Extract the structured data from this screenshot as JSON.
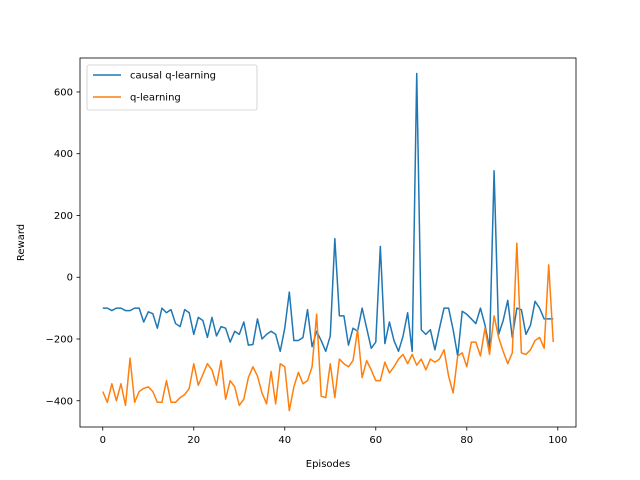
{
  "chart_data": {
    "type": "line",
    "xlabel": "Episodes",
    "ylabel": "Reward",
    "xlim": [
      -5,
      104
    ],
    "ylim": [
      -485,
      710
    ],
    "xticks": [
      0,
      20,
      40,
      60,
      80,
      100
    ],
    "yticks": [
      -400,
      -200,
      0,
      200,
      400,
      600
    ],
    "legend_position": "top-left",
    "grid": false,
    "series": [
      {
        "name": "causal q-learning",
        "color": "#1f77b4",
        "values": [
          -100,
          -100,
          -108,
          -100,
          -100,
          -108,
          -108,
          -100,
          -100,
          -145,
          -112,
          -118,
          -165,
          -100,
          -115,
          -105,
          -150,
          -160,
          -105,
          -115,
          -185,
          -130,
          -140,
          -195,
          -130,
          -190,
          -160,
          -165,
          -210,
          -175,
          -185,
          -145,
          -220,
          -218,
          -135,
          -200,
          -185,
          -175,
          -185,
          -240,
          -165,
          -48,
          -205,
          -205,
          -195,
          -105,
          -225,
          -175,
          -205,
          -240,
          -190,
          125,
          -125,
          -125,
          -220,
          -165,
          -175,
          -100,
          -165,
          -230,
          -210,
          100,
          -215,
          -145,
          -205,
          -240,
          -190,
          -115,
          -240,
          660,
          -170,
          -185,
          -170,
          -235,
          -165,
          -100,
          -100,
          -170,
          -255,
          -110,
          -120,
          -135,
          -150,
          -100,
          -155,
          -230,
          345,
          -185,
          -140,
          -75,
          -195,
          -100,
          -105,
          -185,
          -155,
          -78,
          -100,
          -135,
          -135,
          -135
        ],
        "values_note": ""
      },
      {
        "name": "q-learning",
        "color": "#ff7f0e",
        "values": [
          -370,
          -405,
          -345,
          -400,
          -345,
          -415,
          -262,
          -405,
          -370,
          -360,
          -355,
          -370,
          -405,
          -405,
          -335,
          -405,
          -405,
          -390,
          -380,
          -360,
          -280,
          -350,
          -315,
          -280,
          -300,
          -350,
          -270,
          -395,
          -335,
          -355,
          -415,
          -395,
          -325,
          -290,
          -320,
          -375,
          -410,
          -305,
          -410,
          -280,
          -290,
          -432,
          -355,
          -308,
          -345,
          -335,
          -290,
          -120,
          -385,
          -390,
          -280,
          -390,
          -265,
          -280,
          -290,
          -270,
          -170,
          -325,
          -270,
          -300,
          -335,
          -335,
          -275,
          -310,
          -290,
          -265,
          -250,
          -280,
          -250,
          -285,
          -265,
          -300,
          -265,
          -275,
          -265,
          -235,
          -320,
          -375,
          -255,
          -245,
          -290,
          -210,
          -210,
          -255,
          -165,
          -250,
          -125,
          -195,
          -240,
          -280,
          -245,
          110,
          -245,
          -250,
          -235,
          -205,
          -195,
          -230,
          40,
          -210
        ]
      }
    ]
  }
}
